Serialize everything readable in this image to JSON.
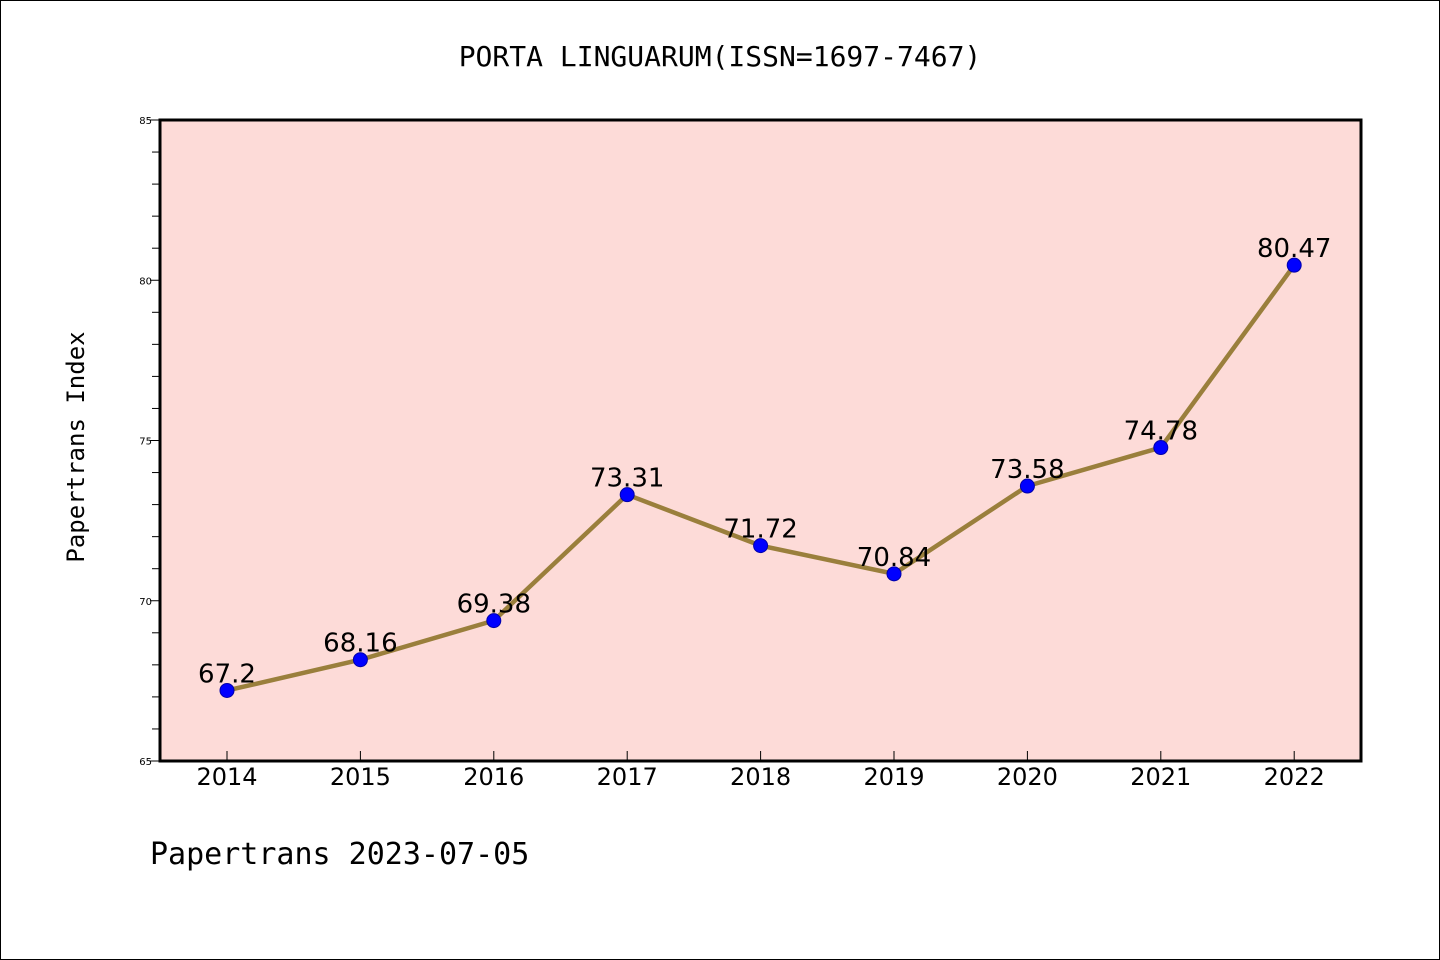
{
  "chart_data": {
    "type": "line",
    "title": "PORTA LINGUARUM(ISSN=1697-7467)",
    "xlabel": "",
    "ylabel": "Papertrans Index",
    "categories": [
      "2014",
      "2015",
      "2016",
      "2017",
      "2018",
      "2019",
      "2020",
      "2021",
      "2022"
    ],
    "series": [
      {
        "values": [
          67.2,
          68.16,
          69.38,
          73.31,
          71.72,
          70.84,
          73.58,
          74.78,
          80.47
        ],
        "labels": [
          "67.2",
          "68.16",
          "69.38",
          "73.31",
          "71.72",
          "70.84",
          "73.58",
          "74.78",
          "80.47"
        ],
        "line_color": "#9a7f3c",
        "marker_color": "#0000ff"
      }
    ],
    "ylim": [
      65,
      85
    ],
    "yticks": [
      "65",
      "70",
      "75",
      "80",
      "85"
    ],
    "plot_background": "#fddbd8",
    "grid": false,
    "legend": "none"
  },
  "footer": "Papertrans 2023-07-05"
}
